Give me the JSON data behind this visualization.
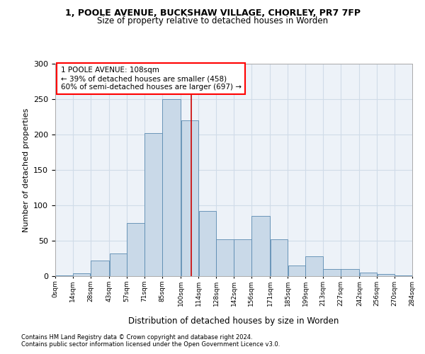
{
  "title1": "1, POOLE AVENUE, BUCKSHAW VILLAGE, CHORLEY, PR7 7FP",
  "title2": "Size of property relative to detached houses in Worden",
  "xlabel": "Distribution of detached houses by size in Worden",
  "ylabel": "Number of detached properties",
  "footnote1": "Contains HM Land Registry data © Crown copyright and database right 2024.",
  "footnote2": "Contains public sector information licensed under the Open Government Licence v3.0.",
  "annotation_line1": "1 POOLE AVENUE: 108sqm",
  "annotation_line2": "← 39% of detached houses are smaller (458)",
  "annotation_line3": "60% of semi-detached houses are larger (697) →",
  "bar_color": "#c9d9e8",
  "bar_edge_color": "#5a8ab0",
  "grid_color": "#d0dce8",
  "marker_line_color": "#cc0000",
  "marker_value": 108,
  "bin_edges": [
    0,
    14,
    28,
    43,
    57,
    71,
    85,
    100,
    114,
    128,
    142,
    156,
    171,
    185,
    199,
    213,
    227,
    242,
    256,
    270,
    284
  ],
  "bar_heights": [
    1,
    4,
    22,
    32,
    75,
    202,
    250,
    220,
    92,
    52,
    52,
    85,
    52,
    15,
    28,
    10,
    10,
    5,
    3,
    1
  ],
  "ylim": [
    0,
    300
  ],
  "yticks": [
    0,
    50,
    100,
    150,
    200,
    250,
    300
  ],
  "tick_labels": [
    "0sqm",
    "14sqm",
    "28sqm",
    "43sqm",
    "57sqm",
    "71sqm",
    "85sqm",
    "100sqm",
    "114sqm",
    "128sqm",
    "142sqm",
    "156sqm",
    "171sqm",
    "185sqm",
    "199sqm",
    "213sqm",
    "227sqm",
    "242sqm",
    "256sqm",
    "270sqm",
    "284sqm"
  ],
  "fig_width": 6.0,
  "fig_height": 5.0,
  "bg_color": "#edf2f8"
}
